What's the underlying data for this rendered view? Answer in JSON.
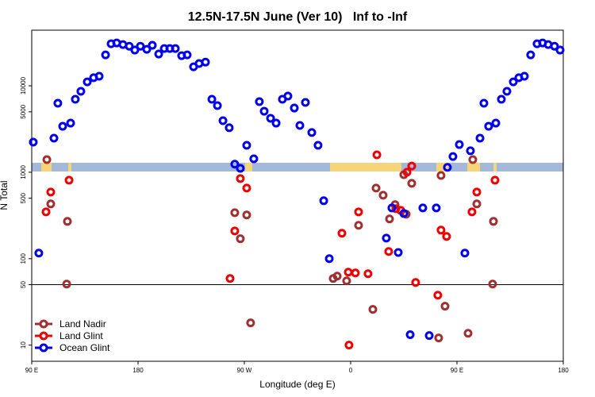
{
  "chart_data": {
    "type": "scatter",
    "title": "12.5N-17.5N June (Ver 10)   Inf to -Inf",
    "x_label": "Longitude (deg E)",
    "y_label": "N Total",
    "xlim": [
      90,
      540
    ],
    "xticks": [
      {
        "value": 90,
        "label": "90 E"
      },
      180,
      {
        "value": 270,
        "label": "90 W"
      },
      {
        "value": 360,
        "label": "0"
      },
      {
        "value": 450,
        "label": "90 E"
      },
      {
        "value": 540,
        "label": "180"
      }
    ],
    "ylim": [
      6.5,
      44000
    ],
    "log_y": true,
    "yticks": [
      10,
      50,
      100,
      500,
      1000,
      5000,
      10000
    ],
    "hline": 50,
    "legend": "lower left",
    "series": [
      {
        "name": "Land Nadir",
        "color": "#a03030",
        "x": [
          102.8,
          106.1,
          120.2,
          119.6,
          261.9,
          266.6,
          272,
          275.3,
          345.2,
          348.6,
          356.6,
          366.7,
          378.8,
          381.5,
          387.5,
          392.9,
          397.6,
          405,
          407,
          411.7,
          434.5,
          436.5,
          439.9,
          459.4,
          463.4,
          466.8,
          480.9,
          480.2
        ],
        "values": [
          1400,
          430,
          270,
          50.8,
          340,
          170,
          320,
          18.1,
          59,
          62.8,
          55.3,
          243,
          25.9,
          656,
          542,
          288,
          421,
          937,
          327,
          745,
          12.1,
          918,
          28.2,
          13.7,
          1400,
          430,
          270,
          50.8
        ]
      },
      {
        "name": "Land Glint",
        "color": "#ee0000",
        "x": [
          102.1,
          106.1,
          121.6,
          257.9,
          261.9,
          266.6,
          272,
          352.6,
          358,
          358.6,
          364,
          366.7,
          374.7,
          382.2,
          392.2,
          398.3,
          402.3,
          407.7,
          411.7,
          415,
          433.8,
          436.5,
          441.2,
          462.7,
          466.8,
          482.2
        ],
        "values": [
          348,
          590,
          809,
          59,
          209,
          845,
          656,
          197,
          69.8,
          10,
          68.4,
          348,
          67,
          1590,
          121,
          378,
          363,
          1000,
          1180,
          53,
          37.8,
          214,
          181,
          348,
          590,
          809
        ]
      },
      {
        "name": "Ocean Glint",
        "color": "#0000ee",
        "x": [
          91.3,
          96,
          108.8,
          112.1,
          116.2,
          122.9,
          126.9,
          131.6,
          137,
          142.4,
          147.1,
          152.5,
          157.2,
          161.9,
          167.2,
          172.6,
          177.3,
          182,
          187.4,
          192.1,
          197.5,
          202.2,
          206.9,
          211.6,
          216.9,
          221.6,
          227,
          231.7,
          237.1,
          242.5,
          247.2,
          251.9,
          257.2,
          261.9,
          266.6,
          272,
          278,
          282.7,
          286.8,
          292.2,
          296.9,
          302.2,
          306.9,
          312.3,
          317,
          321.7,
          327.1,
          332.4,
          337.2,
          341.9,
          390.2,
          394.9,
          400.3,
          405,
          410.4,
          421.1,
          426.5,
          432.5,
          441.9,
          446.6,
          452,
          456.7,
          461.4,
          469.5,
          472.8,
          476.8,
          482.9,
          487.6,
          492.3,
          497.7,
          502.4,
          507.1,
          512.4,
          517.8,
          522.5,
          527.2,
          532.6,
          537.3
        ],
        "values": [
          2230,
          116,
          2480,
          6280,
          3400,
          3700,
          6980,
          8630,
          11100,
          12400,
          12900,
          22800,
          30600,
          31300,
          30000,
          28700,
          25900,
          28700,
          26400,
          29400,
          23300,
          27000,
          27000,
          27000,
          22300,
          22800,
          16600,
          18100,
          18800,
          6980,
          5900,
          3950,
          3270,
          1240,
          1110,
          2050,
          1430,
          6560,
          5080,
          4210,
          3700,
          6980,
          7600,
          5530,
          3480,
          6420,
          2880,
          2050,
          468,
          100,
          173,
          386,
          118,
          333,
          13.2,
          386,
          12.9,
          386,
          1140,
          1520,
          2090,
          116,
          1770,
          2480,
          6280,
          3400,
          3700,
          6980,
          8630,
          11100,
          12400,
          12900,
          22800,
          30600,
          31300,
          30000,
          28700,
          25900
        ]
      }
    ]
  }
}
